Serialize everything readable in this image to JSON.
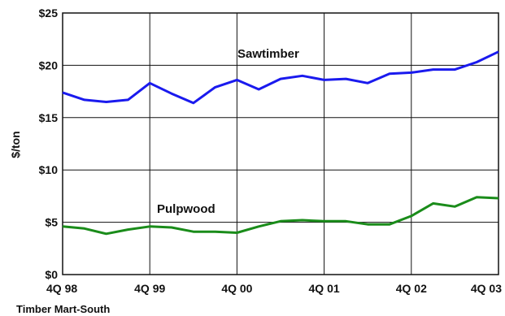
{
  "chart_data": {
    "type": "line",
    "ylabel": "$/ton",
    "xlabel": "",
    "source": "Timber Mart-South",
    "x_tick_labels": [
      "4Q 98",
      "4Q 99",
      "4Q 00",
      "4Q 01",
      "4Q 02",
      "4Q 03"
    ],
    "y_tick_labels": [
      "$0",
      "$5",
      "$10",
      "$15",
      "$20",
      "$25"
    ],
    "ylim": [
      0,
      25
    ],
    "y_ticks": [
      0,
      5,
      10,
      15,
      20,
      25
    ],
    "grid": true,
    "x": [
      "4Q 98",
      "1Q 99",
      "2Q 99",
      "3Q 99",
      "4Q 99",
      "1Q 00",
      "2Q 00",
      "3Q 00",
      "4Q 00",
      "1Q 01",
      "2Q 01",
      "3Q 01",
      "4Q 01",
      "1Q 02",
      "2Q 02",
      "3Q 02",
      "4Q 02",
      "1Q 03",
      "2Q 03",
      "3Q 03",
      "4Q 03"
    ],
    "series": [
      {
        "name": "Sawtimber",
        "color": "#1a1aee",
        "values": [
          17.4,
          16.7,
          16.5,
          16.7,
          18.3,
          17.3,
          16.4,
          17.9,
          18.6,
          17.7,
          18.7,
          19.0,
          18.6,
          18.7,
          18.3,
          19.2,
          19.3,
          19.6,
          19.6,
          20.3,
          21.3
        ]
      },
      {
        "name": "Pulpwood",
        "color": "#1a8c1a",
        "values": [
          4.6,
          4.4,
          3.9,
          4.3,
          4.6,
          4.5,
          4.1,
          4.1,
          4.0,
          4.6,
          5.1,
          5.2,
          5.1,
          5.1,
          4.8,
          4.8,
          5.6,
          6.8,
          6.5,
          7.4,
          7.3
        ]
      }
    ]
  }
}
